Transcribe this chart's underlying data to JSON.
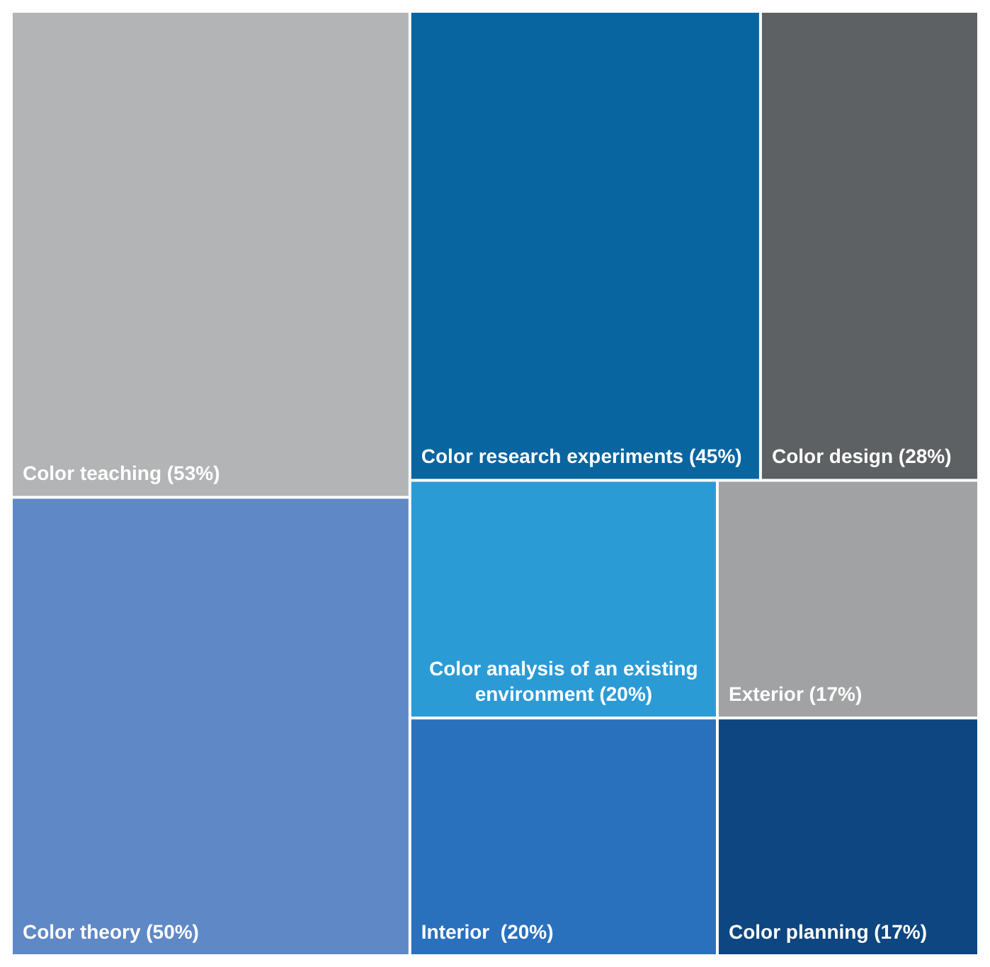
{
  "chart_data": {
    "type": "other",
    "categories": [
      "Color teaching",
      "Color theory",
      "Color research experiments",
      "Color design",
      "Color analysis of an existing environment",
      "Interior ",
      "Exterior",
      "Color planning"
    ],
    "value_labels": [
      "(53%)",
      "(50%)",
      "(45%)",
      "(28%)",
      "(20%)",
      "(20%)",
      "(17%)",
      "(17%)"
    ],
    "values": [
      53,
      50,
      45,
      28,
      20,
      20,
      17,
      17
    ],
    "colors": [
      "#b2b4b5",
      "#5f88c6",
      "#0865a0",
      "#5e6163",
      "#2b9bd6",
      "#2a71bd",
      "#a0a2a3",
      "#0d4680"
    ]
  }
}
